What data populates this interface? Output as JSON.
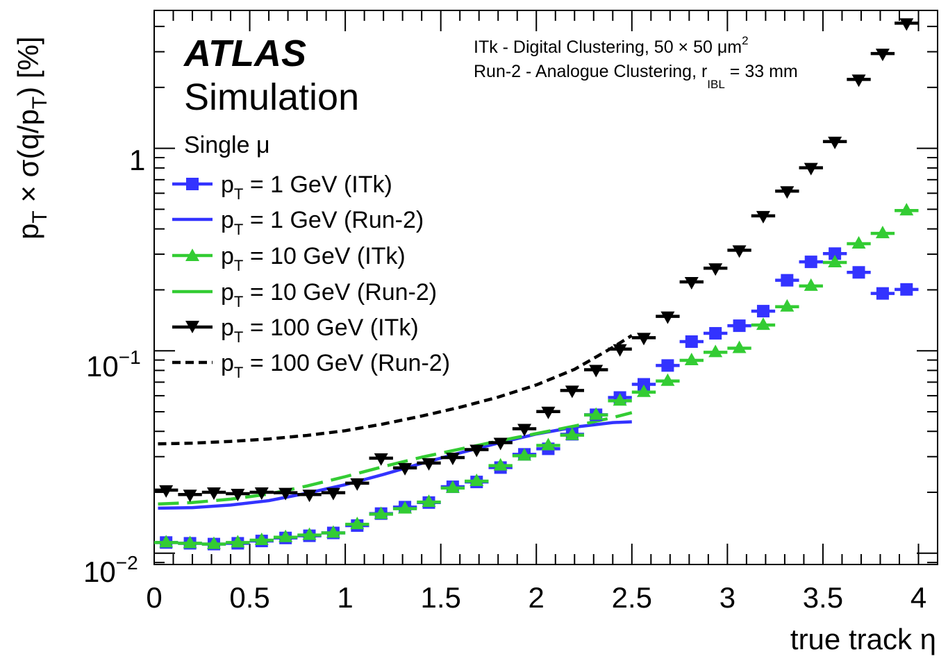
{
  "chart_data": {
    "type": "scatter",
    "title": "ATLAS",
    "subtitle": "Simulation",
    "xlabel": "true track η",
    "ylabel_parts": {
      "a": "p",
      "sub1": "T",
      "b": " × σ(q/p",
      "sub2": "T",
      "c": ") [%]"
    },
    "xlim": [
      0,
      4.1
    ],
    "ylim": [
      0.0088,
      4.8
    ],
    "yscale": "log",
    "x_ticks": [
      "0",
      "0.5",
      "1",
      "1.5",
      "2",
      "2.5",
      "3",
      "3.5",
      "4"
    ],
    "y_tick_labels": {
      "ten": "10",
      "e2": "−2",
      "e1": "−1",
      "one": "1"
    },
    "annotations": {
      "line1": "ITk - Digital Clustering, 50 × 50 μm",
      "line1_sup": "2",
      "line2": "Run-2 - Analogue Clustering, r",
      "line2_sub": "IBL",
      "line2_end": " = 33 mm",
      "sample": "Single μ"
    },
    "legend": [
      {
        "p": "p",
        "sub": "T",
        "rest": " = 1 GeV (ITk)"
      },
      {
        "p": "p",
        "sub": "T",
        "rest": " = 1 GeV (Run-2)"
      },
      {
        "p": "p",
        "sub": "T",
        "rest": " = 10 GeV (ITk)"
      },
      {
        "p": "p",
        "sub": "T",
        "rest": " = 10 GeV (Run-2)"
      },
      {
        "p": "p",
        "sub": "T",
        "rest": " = 100 GeV (ITk)"
      },
      {
        "p": "p",
        "sub": "T",
        "rest": " = 100 GeV (Run-2)"
      }
    ],
    "colors": {
      "blue": "#3333ff",
      "green": "#33cc33",
      "black": "#000000"
    },
    "x_centers": [
      0.0625,
      0.1875,
      0.3125,
      0.4375,
      0.5625,
      0.6875,
      0.8125,
      0.9375,
      1.0625,
      1.1875,
      1.3125,
      1.4375,
      1.5625,
      1.6875,
      1.8125,
      1.9375,
      2.0625,
      2.1875,
      2.3125,
      2.4375,
      2.5625,
      2.6875,
      2.8125,
      2.9375,
      3.0625,
      3.1875,
      3.3125,
      3.4375,
      3.5625,
      3.6875,
      3.8125,
      3.9375
    ],
    "series": [
      {
        "name": "pT = 1 GeV (ITk)",
        "marker": "square",
        "color": "#3333ff",
        "values": [
          0.0113,
          0.0112,
          0.0111,
          0.0112,
          0.0115,
          0.0119,
          0.0122,
          0.0126,
          0.0137,
          0.0157,
          0.0169,
          0.0178,
          0.0213,
          0.0225,
          0.0265,
          0.0308,
          0.0328,
          0.0387,
          0.0483,
          0.0588,
          0.0683,
          0.0846,
          0.111,
          0.122,
          0.133,
          0.157,
          0.223,
          0.275,
          0.302,
          0.244,
          0.192,
          0.201
        ]
      },
      {
        "name": "pT = 10 GeV (ITk)",
        "marker": "triangle-up",
        "color": "#33cc33",
        "values": [
          0.0113,
          0.0112,
          0.0111,
          0.0113,
          0.0116,
          0.012,
          0.0123,
          0.0126,
          0.0139,
          0.0156,
          0.0166,
          0.0179,
          0.021,
          0.0227,
          0.0271,
          0.0303,
          0.0341,
          0.0383,
          0.0482,
          0.0566,
          0.0625,
          0.0709,
          0.0897,
          0.0983,
          0.103,
          0.134,
          0.165,
          0.209,
          0.273,
          0.338,
          0.38,
          0.493
        ]
      },
      {
        "name": "pT = 100 GeV (ITk)",
        "marker": "triangle-down",
        "color": "#000000",
        "values": [
          0.0205,
          0.0195,
          0.02,
          0.0197,
          0.02,
          0.0199,
          0.0195,
          0.0199,
          0.0222,
          0.0295,
          0.0264,
          0.0279,
          0.0297,
          0.0325,
          0.0352,
          0.0412,
          0.0501,
          0.0637,
          0.0806,
          0.102,
          0.116,
          0.148,
          0.219,
          0.256,
          0.314,
          0.464,
          0.615,
          0.802,
          1.08,
          2.19,
          2.94,
          4.15
        ]
      },
      {
        "name": "pT = 1 GeV (Run-2)",
        "line": "solid",
        "color": "#3333ff",
        "x": [
          0.02,
          0.2,
          0.4,
          0.6,
          0.8,
          1.0,
          1.2,
          1.4,
          1.6,
          1.8,
          2.0,
          2.2,
          2.4,
          2.5
        ],
        "values": [
          0.0167,
          0.0168,
          0.0173,
          0.0182,
          0.0198,
          0.0218,
          0.0245,
          0.0278,
          0.0313,
          0.035,
          0.0388,
          0.042,
          0.0442,
          0.0446
        ]
      },
      {
        "name": "pT = 10 GeV (Run-2)",
        "line": "long-dash",
        "color": "#33cc33",
        "x": [
          0.02,
          0.2,
          0.4,
          0.6,
          0.8,
          1.0,
          1.2,
          1.4,
          1.6,
          1.8,
          2.0,
          2.2,
          2.4,
          2.5
        ],
        "values": [
          0.0175,
          0.0178,
          0.0185,
          0.0196,
          0.0215,
          0.0239,
          0.0268,
          0.0298,
          0.0327,
          0.0358,
          0.039,
          0.0425,
          0.0468,
          0.0495
        ]
      },
      {
        "name": "pT = 100 GeV (Run-2)",
        "line": "dashed",
        "color": "#000000",
        "x": [
          0.02,
          0.2,
          0.4,
          0.6,
          0.8,
          1.0,
          1.2,
          1.4,
          1.6,
          1.8,
          2.0,
          2.2,
          2.4,
          2.5
        ],
        "values": [
          0.0347,
          0.035,
          0.0357,
          0.0367,
          0.0382,
          0.0403,
          0.0435,
          0.0476,
          0.0526,
          0.059,
          0.0678,
          0.081,
          0.104,
          0.119
        ]
      }
    ]
  }
}
